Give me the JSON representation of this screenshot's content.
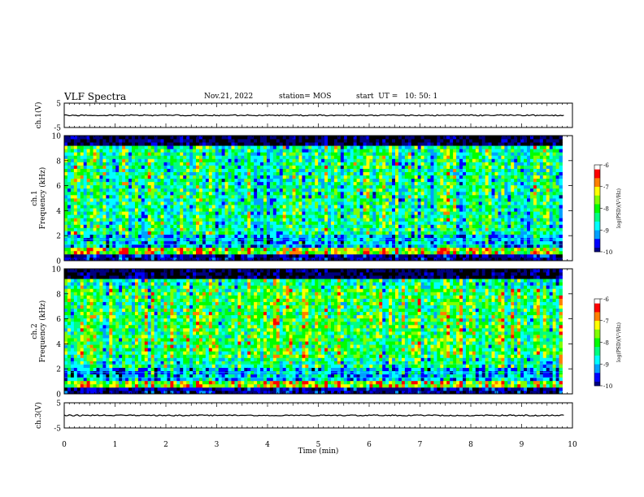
{
  "header": {
    "title": "VLF Spectra",
    "date": "Nov.21, 2022",
    "station": "station= MOS",
    "start": "start  UT =   10: 50: 1"
  },
  "chart_data": [
    {
      "type": "line",
      "panel": "ch1-waveform",
      "ylabel": "ch.1(V)",
      "ylim": [
        -5,
        5
      ],
      "ytick_labels": [
        "5",
        "-5"
      ],
      "x": [
        0,
        10
      ],
      "values": [
        0,
        0
      ],
      "xlim": [
        0,
        10
      ]
    },
    {
      "type": "heatmap",
      "panel": "ch1-spectrogram",
      "ylabel": "ch.1\nFrequency (kHz)",
      "ylim": [
        0,
        10
      ],
      "ytick_labels": [
        "0",
        "2",
        "4",
        "6",
        "8",
        "10"
      ],
      "xlim": [
        0,
        10
      ],
      "data_extent_min": 9.8,
      "colorbar": {
        "label": "log(PSD)(V²/Hz)",
        "range": [
          -10,
          -6
        ],
        "tick_labels": [
          "-6",
          "-7",
          "-8",
          "-9",
          "-10"
        ]
      }
    },
    {
      "type": "heatmap",
      "panel": "ch2-spectrogram",
      "ylabel": "ch.2\nFrequency (kHz)",
      "ylim": [
        0,
        10
      ],
      "ytick_labels": [
        "0",
        "2",
        "4",
        "6",
        "8",
        "10"
      ],
      "xlim": [
        0,
        10
      ],
      "data_extent_min": 9.8,
      "colorbar": {
        "label": "log(PSD)(V²/Hz)",
        "range": [
          -10,
          -6
        ],
        "tick_labels": [
          "-6",
          "-7",
          "-8",
          "-9",
          "-10"
        ]
      }
    },
    {
      "type": "line",
      "panel": "ch3-waveform",
      "ylabel": "ch.3(V)",
      "ylim": [
        -5,
        5
      ],
      "ytick_labels": [
        "5",
        "-5"
      ],
      "x": [
        0,
        10
      ],
      "values": [
        0,
        0
      ],
      "xlim": [
        0,
        10
      ],
      "xlabel": "Time (min)",
      "xtick_labels": [
        "0",
        "1",
        "2",
        "3",
        "4",
        "5",
        "6",
        "7",
        "8",
        "9",
        "10"
      ]
    }
  ],
  "colormap": [
    "#000000",
    "#000080",
    "#0000ff",
    "#00a0ff",
    "#00ffff",
    "#00ff80",
    "#00ff00",
    "#80ff00",
    "#ffff00",
    "#ff8000",
    "#ff0000",
    "#ffffff"
  ]
}
